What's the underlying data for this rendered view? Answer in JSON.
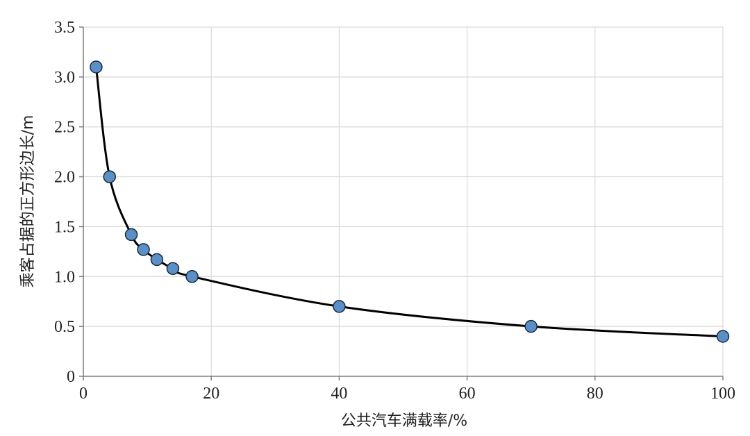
{
  "chart_data": {
    "type": "scatter",
    "xlabel": "公共汽车满载率/%",
    "ylabel": "乘客占据的正方形边长/m",
    "xlim": [
      0,
      100
    ],
    "ylim": [
      0,
      3.5
    ],
    "x_ticks": [
      0,
      20,
      40,
      60,
      80,
      100
    ],
    "y_ticks": [
      0,
      0.5,
      1.0,
      1.5,
      2.0,
      2.5,
      3.0,
      3.5
    ],
    "x_tick_labels": [
      "0",
      "20",
      "40",
      "60",
      "80",
      "100"
    ],
    "y_tick_labels": [
      "0",
      "0.5",
      "1.0",
      "1.5",
      "2.0",
      "2.5",
      "3.0",
      "3.5"
    ],
    "grid": true,
    "series": [
      {
        "x": [
          2,
          4.1,
          7.5,
          9.4,
          11.5,
          14,
          17,
          40,
          70,
          100
        ],
        "y": [
          3.1,
          2.0,
          1.42,
          1.27,
          1.17,
          1.08,
          1.0,
          0.7,
          0.5,
          0.4
        ],
        "marker_color": "#5b8fc8",
        "marker_edge": "#1a2a3a",
        "line_color": "#000000",
        "smooth": true
      }
    ],
    "grid_color": "#d9d9d9",
    "axis_color": "#7f7f7f"
  }
}
